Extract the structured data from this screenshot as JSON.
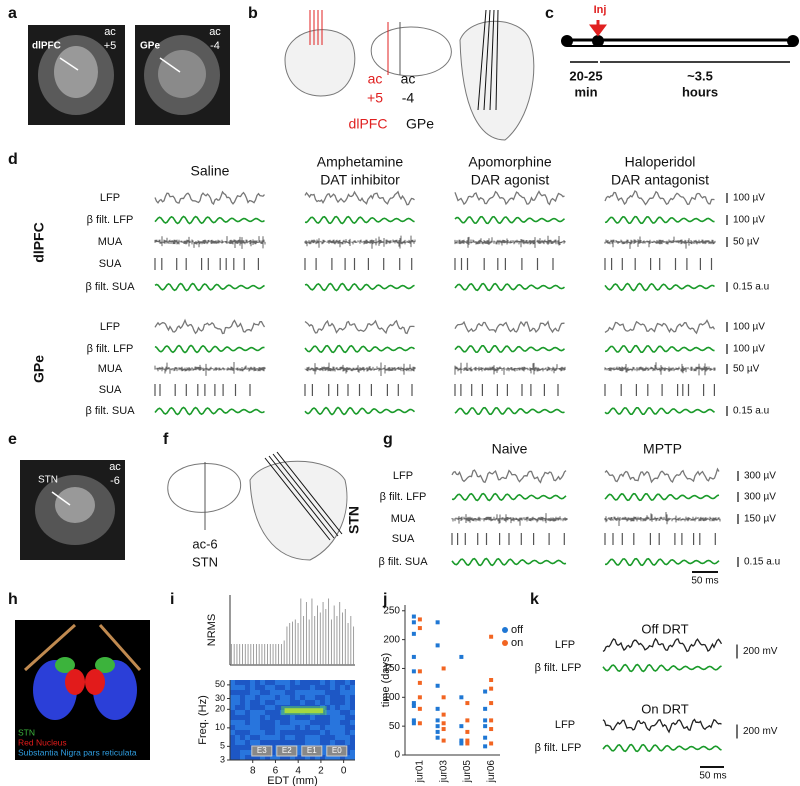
{
  "panels": {
    "a": {
      "letter": "a",
      "left": {
        "label": "dlPFC",
        "ac": "ac",
        "level": "+5"
      },
      "right": {
        "label": "GPe",
        "ac": "ac",
        "level": "-4"
      }
    },
    "b": {
      "letter": "b",
      "red_ac": "ac",
      "red_level": "+5",
      "ac": "ac",
      "level": "-4",
      "red_name": "dlPFC",
      "name": "GPe"
    },
    "c": {
      "letter": "c",
      "inj": "Inj",
      "first": [
        "20-25",
        "min"
      ],
      "second": [
        "~3.5",
        "hours"
      ]
    },
    "d": {
      "letter": "d",
      "conditions": [
        [
          "Saline"
        ],
        [
          "Amphetamine",
          "DAT inhibitor"
        ],
        [
          "Apomorphine",
          "DAR agonist"
        ],
        [
          "Haloperidol",
          "DAR antagonist"
        ]
      ],
      "regions": [
        {
          "name": "dlPFC",
          "rows": [
            "LFP",
            "β filt. LFP",
            "MUA",
            "SUA",
            "β filt. SUA"
          ],
          "scales": [
            "100 µV",
            "100 µV",
            "50 µV",
            "0.15 a.u"
          ]
        },
        {
          "name": "GPe",
          "rows": [
            "LFP",
            "β filt. LFP",
            "MUA",
            "SUA",
            "β filt. SUA"
          ],
          "scales": [
            "100 µV",
            "100 µV",
            "50  µV",
            "0.15 a.u"
          ]
        }
      ]
    },
    "e": {
      "letter": "e",
      "label": "STN",
      "ac": "ac",
      "level": "-6"
    },
    "f": {
      "letter": "f",
      "ac": "ac-6",
      "name": "STN"
    },
    "g": {
      "letter": "g",
      "conditions": [
        "Naive",
        "MPTP"
      ],
      "region": "STN",
      "rows": [
        "LFP",
        "β filt. LFP",
        "MUA",
        "SUA",
        "β filt. SUA"
      ],
      "scales": [
        "300 µV",
        "300 µV",
        "150 µV",
        "0.15 a.u"
      ],
      "time": "50 ms"
    },
    "h": {
      "letter": "h",
      "legend": [
        "STN",
        "Red Nucleus",
        "Substantia Nigra pars reticulata"
      ]
    },
    "i": {
      "letter": "i"
    },
    "j": {
      "letter": "j"
    },
    "k": {
      "letter": "k",
      "conditions": [
        {
          "title": "Off DRT",
          "rows": [
            "LFP",
            "β filt. LFP"
          ],
          "scale": "200 mV"
        },
        {
          "title": "On DRT",
          "rows": [
            "LFP",
            "β filt. LFP"
          ],
          "scale": "200 mV"
        }
      ],
      "time": "50 ms"
    }
  },
  "chart_data": [
    {
      "type": "bar",
      "ylabel": "NRMS",
      "color": "#8c8c8c",
      "ylim": [
        0,
        1
      ],
      "values": [
        0.3,
        0.3,
        0.3,
        0.3,
        0.3,
        0.3,
        0.3,
        0.3,
        0.3,
        0.3,
        0.3,
        0.3,
        0.3,
        0.3,
        0.3,
        0.3,
        0.3,
        0.3,
        0.3,
        0.35,
        0.55,
        0.6,
        0.62,
        0.65,
        0.6,
        0.95,
        0.7,
        0.9,
        0.65,
        0.95,
        0.7,
        0.85,
        0.75,
        0.9,
        0.8,
        0.95,
        0.65,
        0.85,
        0.7,
        0.9,
        0.75,
        0.8,
        0.6,
        0.7,
        0.55
      ]
    },
    {
      "type": "spectrogram",
      "ylabel": "Freq. (Hz)",
      "xlabel": "EDT (mm)",
      "xlim": [
        10,
        -1
      ],
      "xticks": [
        8,
        6,
        4,
        2,
        0
      ],
      "ylog": true,
      "ylim": [
        3,
        60
      ],
      "yticks": [
        3,
        5,
        10,
        20,
        30,
        50
      ],
      "bands": [
        "E3",
        "E2",
        "E1",
        "E0"
      ]
    },
    {
      "type": "scatter",
      "ylabel": "time (days)",
      "categories": [
        "jur01",
        "jur03",
        "jur05",
        "jur06"
      ],
      "ylim": [
        0,
        260
      ],
      "yticks": [
        0,
        50,
        100,
        150,
        200,
        250
      ],
      "legend": "top-right",
      "series": [
        {
          "name": "off",
          "color": "#1f77d4",
          "values": [
            [
              240,
              230,
              210,
              170,
              145,
              90,
              85,
              60,
              55
            ],
            [
              230,
              190,
              120,
              80,
              60,
              50,
              40,
              30
            ],
            [
              170,
              100,
              50,
              25,
              20
            ],
            [
              110,
              80,
              60,
              50,
              30,
              15
            ]
          ]
        },
        {
          "name": "on",
          "color": "#f26522",
          "values": [
            [
              235,
              220,
              145,
              125,
              100,
              80,
              55
            ],
            [
              150,
              100,
              70,
              55,
              45,
              25
            ],
            [
              90,
              60,
              40,
              25,
              20
            ],
            [
              205,
              130,
              115,
              90,
              60,
              45,
              20
            ]
          ]
        }
      ]
    }
  ]
}
